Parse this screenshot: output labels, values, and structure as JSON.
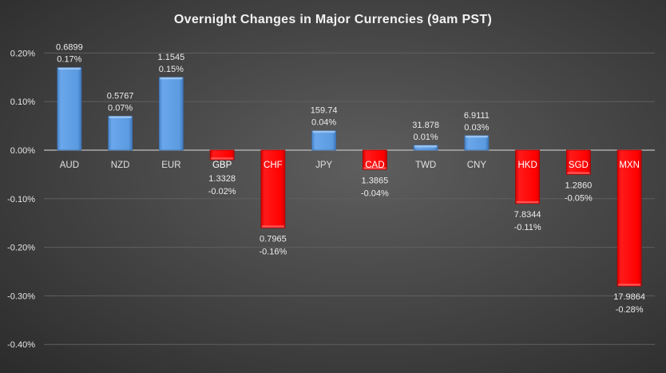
{
  "chart_data": {
    "type": "bar",
    "title": "Overnight Changes in Major Currencies (9am PST)",
    "xlabel": "",
    "ylabel": "",
    "ylim": [
      -0.4,
      0.2
    ],
    "yticks": [
      "0.20%",
      "0.10%",
      "0.00%",
      "-0.10%",
      "-0.20%",
      "-0.30%",
      "-0.40%"
    ],
    "ytick_values": [
      0.2,
      0.1,
      0.0,
      -0.1,
      -0.2,
      -0.3,
      -0.4
    ],
    "grid": true,
    "categories": [
      "AUD",
      "NZD",
      "EUR",
      "GBP",
      "CHF",
      "JPY",
      "CAD",
      "TWD",
      "CNY",
      "HKD",
      "SGD",
      "MXN"
    ],
    "values": [
      0.17,
      0.07,
      0.15,
      -0.02,
      -0.16,
      0.04,
      -0.04,
      0.01,
      0.03,
      -0.11,
      -0.05,
      -0.28
    ],
    "prices": [
      "0.6899",
      "0.5767",
      "1.1545",
      "1.3328",
      "0.7965",
      "159.74",
      "1.3865",
      "31.878",
      "6.9111",
      "7.8344",
      "1.2860",
      "17.9864"
    ],
    "value_labels": [
      "0.17%",
      "0.07%",
      "0.15%",
      "-0.02%",
      "-0.16%",
      "0.04%",
      "-0.04%",
      "0.01%",
      "0.03%",
      "-0.11%",
      "-0.05%",
      "-0.28%"
    ],
    "colors": {
      "positive": "#5b9be0",
      "negative": "#ff0000"
    }
  }
}
